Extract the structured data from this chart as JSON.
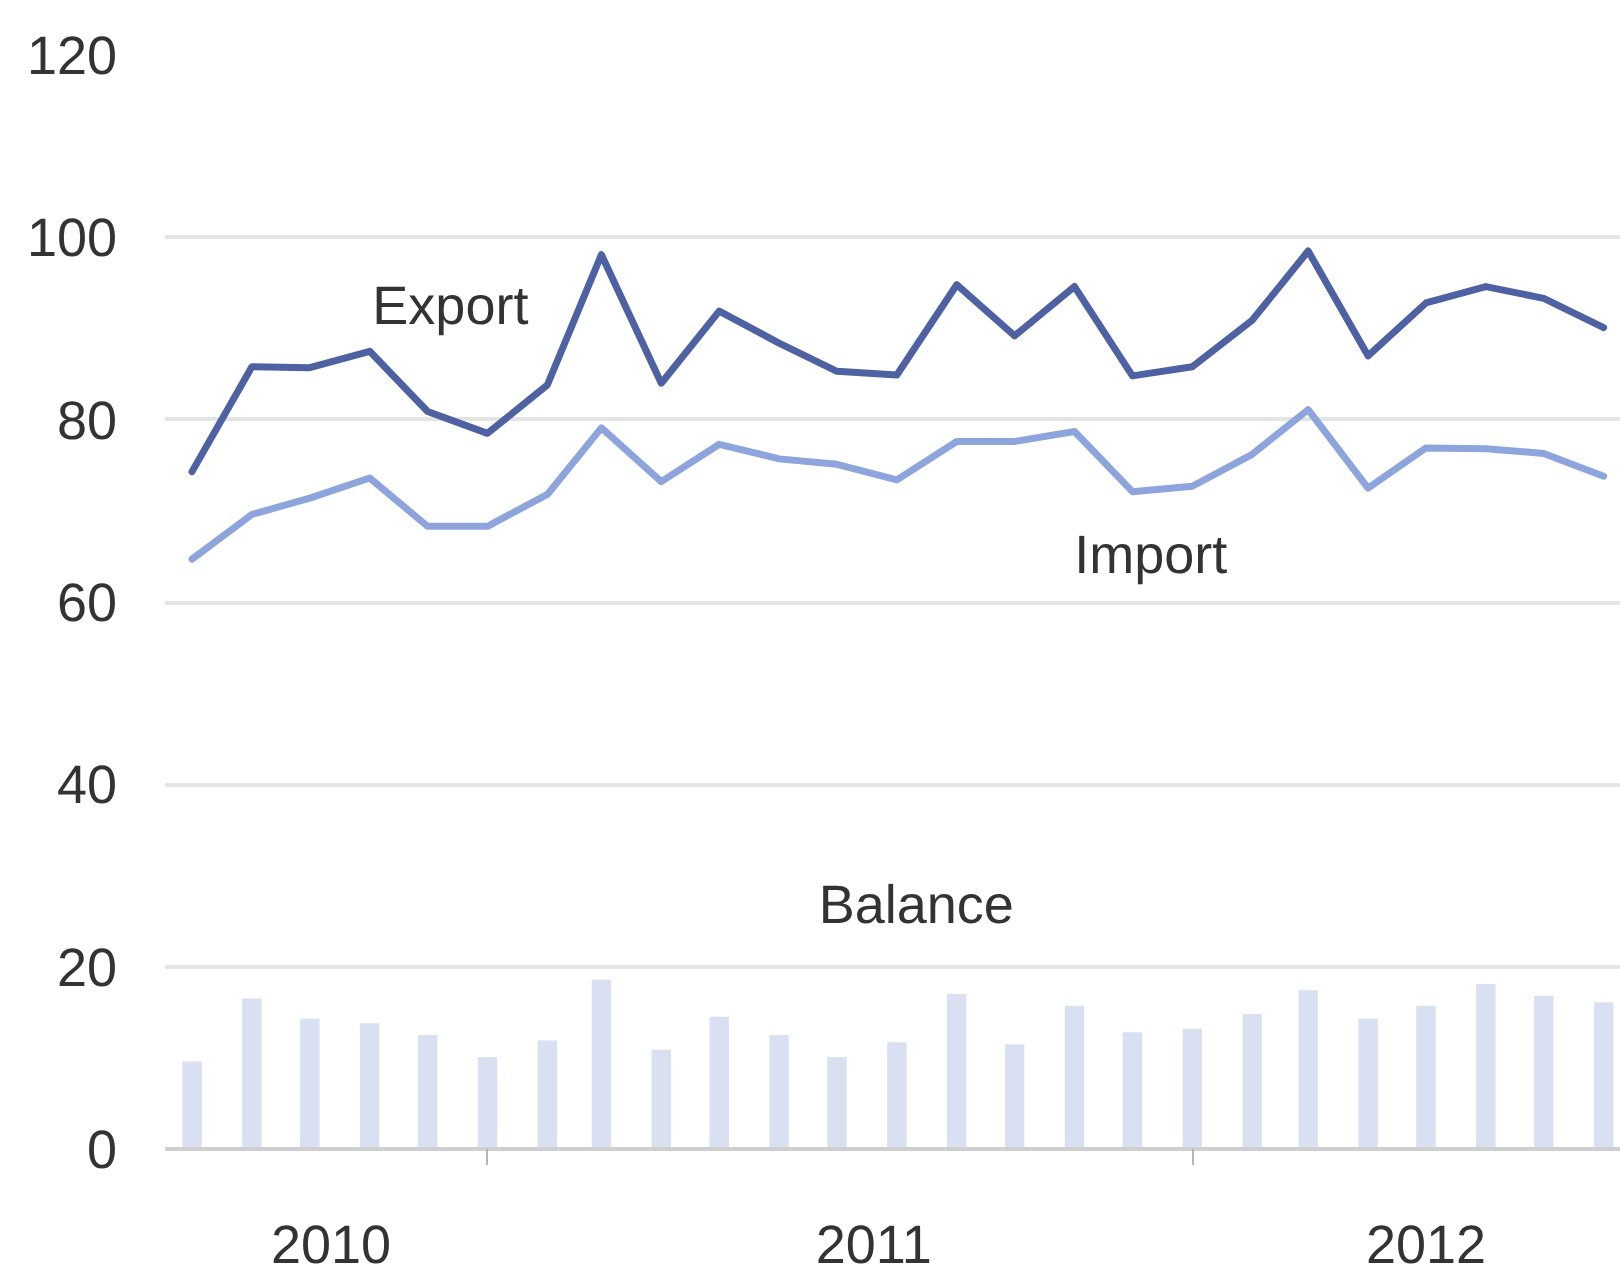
{
  "chart_data": {
    "type": "line",
    "x": [
      "2010-08",
      "2010-09",
      "2010-10",
      "2010-11",
      "2010-12",
      "2011-01",
      "2011-02",
      "2011-03",
      "2011-04",
      "2011-05",
      "2011-06",
      "2011-07",
      "2011-08",
      "2011-09",
      "2011-10",
      "2011-11",
      "2011-12",
      "2012-01",
      "2012-02",
      "2012-03",
      "2012-04",
      "2012-05",
      "2012-06",
      "2012-07",
      "2012-08"
    ],
    "xlim": [
      "2010-07-18",
      "2012-08-10"
    ],
    "xticks": [
      {
        "value": "2010-10-12",
        "label": "2010"
      },
      {
        "value": "2011-01-01",
        "label": null
      },
      {
        "value": "2011-07-20",
        "label": "2011"
      },
      {
        "value": "2012-01-01",
        "label": null
      },
      {
        "value": "2012-05-01",
        "label": "2012"
      }
    ],
    "ylim": [
      0,
      120
    ],
    "yticks": [
      0,
      20,
      40,
      60,
      80,
      100,
      120
    ],
    "grid": "y",
    "series": [
      {
        "name": "Export",
        "color": "#4e62a3",
        "values": [
          74.3,
          85.8,
          85.7,
          87.5,
          80.9,
          78.5,
          83.8,
          98.1,
          84.0,
          91.9,
          88.4,
          85.3,
          84.9,
          94.8,
          89.2,
          94.6,
          84.8,
          85.8,
          90.9,
          98.5,
          87.0,
          92.8,
          94.6,
          93.3,
          90.1
        ]
      },
      {
        "name": "Import",
        "color": "#8da4dd",
        "values": [
          64.7,
          69.6,
          71.4,
          73.6,
          68.3,
          68.3,
          71.8,
          79.1,
          73.2,
          77.3,
          75.7,
          75.1,
          73.4,
          77.6,
          77.6,
          78.7,
          72.1,
          72.7,
          76.2,
          81.1,
          72.5,
          76.9,
          76.8,
          76.3,
          73.8
        ]
      },
      {
        "name": "Balance",
        "type": "bar",
        "color": "#d8e0f2",
        "values": [
          9.6,
          16.5,
          14.3,
          13.8,
          12.5,
          10.1,
          11.9,
          18.6,
          10.9,
          14.5,
          12.5,
          10.1,
          11.7,
          17.0,
          11.5,
          15.7,
          12.8,
          13.2,
          14.8,
          17.4,
          14.3,
          15.7,
          18.1,
          16.8,
          16.1
        ]
      }
    ]
  }
}
